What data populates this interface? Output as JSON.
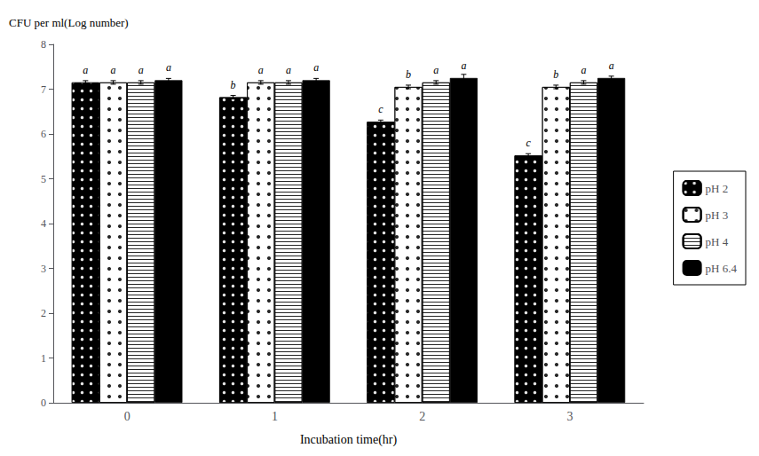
{
  "chart_data": {
    "type": "bar",
    "xlabel": "Incubation time(hr)",
    "ylabel": "CFU per ml(Log number)",
    "categories": [
      "0",
      "1",
      "2",
      "3"
    ],
    "series": [
      {
        "name": "pH 2",
        "color": "black",
        "values": [
          7.15,
          6.82,
          6.27,
          5.52
        ],
        "errors": [
          0.04,
          0.04,
          0.04,
          0.04
        ],
        "letters": [
          "a",
          "b",
          "c",
          "c"
        ]
      },
      {
        "name": "pH 3",
        "color": "white",
        "values": [
          7.15,
          7.15,
          7.05,
          7.05
        ],
        "errors": [
          0.04,
          0.04,
          0.04,
          0.04
        ],
        "letters": [
          "a",
          "a",
          "b",
          "b"
        ]
      },
      {
        "name": "pH 4",
        "color": "white",
        "values": [
          7.15,
          7.15,
          7.15,
          7.15
        ],
        "errors": [
          0.04,
          0.04,
          0.04,
          0.04
        ],
        "letters": [
          "a",
          "a",
          "a",
          "a"
        ]
      },
      {
        "name": "pH 6.4",
        "color": "black",
        "values": [
          7.2,
          7.2,
          7.25,
          7.25
        ],
        "errors": [
          0.04,
          0.04,
          0.08,
          0.04
        ],
        "letters": [
          "a",
          "a",
          "a",
          "a"
        ]
      }
    ],
    "ylim": [
      0,
      8
    ],
    "yticks": [
      0,
      1,
      2,
      3,
      4,
      5,
      6,
      7,
      8
    ],
    "grid": false,
    "legend": "right"
  }
}
